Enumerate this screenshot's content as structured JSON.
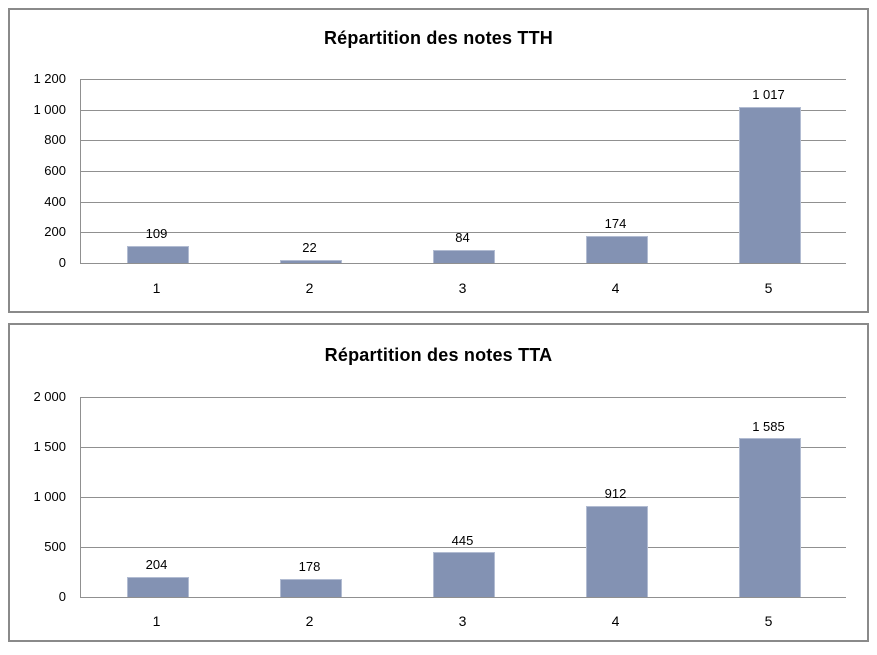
{
  "colors": {
    "bar_fill": "#8392B3",
    "bar_border": "#B2BCD2",
    "gridline": "#909090",
    "chart_border": "#8A8A8A",
    "text": "#000000",
    "background": "#FFFFFF"
  },
  "chart_data": [
    {
      "type": "bar",
      "title": "Répartition des notes TTH",
      "categories": [
        "1",
        "2",
        "3",
        "4",
        "5"
      ],
      "values": [
        109,
        22,
        84,
        174,
        1017
      ],
      "value_labels": [
        "109",
        "22",
        "84",
        "174",
        "1 017"
      ],
      "xlabel": "",
      "ylabel": "",
      "ylim": [
        0,
        1200
      ],
      "yticks": [
        0,
        200,
        400,
        600,
        800,
        1000,
        1200
      ],
      "ytick_labels": [
        "0",
        "200",
        "400",
        "600",
        "800",
        "1 000",
        "1 200"
      ],
      "grid": true,
      "legend": false
    },
    {
      "type": "bar",
      "title": "Répartition des notes TTA",
      "categories": [
        "1",
        "2",
        "3",
        "4",
        "5"
      ],
      "values": [
        204,
        178,
        445,
        912,
        1585
      ],
      "value_labels": [
        "204",
        "178",
        "445",
        "912",
        "1 585"
      ],
      "xlabel": "",
      "ylabel": "",
      "ylim": [
        0,
        2000
      ],
      "yticks": [
        0,
        500,
        1000,
        1500,
        2000
      ],
      "ytick_labels": [
        "0",
        "500",
        "1 000",
        "1 500",
        "2 000"
      ],
      "grid": true,
      "legend": false
    }
  ]
}
